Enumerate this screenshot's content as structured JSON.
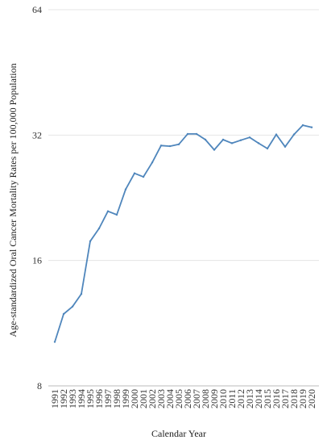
{
  "chart_data": {
    "type": "line",
    "scale": "log2",
    "xlabel": "Calendar Year",
    "ylabel": "Age-standardized Oral Cancer Mortality Rates per 100,000 Population",
    "y_ticks": [
      8,
      16,
      32,
      64
    ],
    "ylim": [
      8,
      64
    ],
    "grid": "horizontal",
    "x": [
      "1991",
      "1992",
      "1993",
      "1994",
      "1995",
      "1996",
      "1997",
      "1998",
      "1999",
      "2000",
      "2001",
      "2002",
      "2003",
      "2004",
      "2005",
      "2006",
      "2007",
      "2008",
      "2009",
      "2010",
      "2011",
      "2012",
      "2013",
      "2014",
      "2015",
      "2016",
      "2017",
      "2018",
      "2019",
      "2020"
    ],
    "series": [
      {
        "color": "#4f86bc",
        "values": [
          10.2,
          11.9,
          12.4,
          13.3,
          17.8,
          19.1,
          21.0,
          20.6,
          23.7,
          25.9,
          25.4,
          27.5,
          30.2,
          30.1,
          30.4,
          32.2,
          32.2,
          31.2,
          29.5,
          31.2,
          30.6,
          31.1,
          31.6,
          30.6,
          29.7,
          32.1,
          30.0,
          32.1,
          33.8,
          33.4
        ]
      }
    ]
  }
}
